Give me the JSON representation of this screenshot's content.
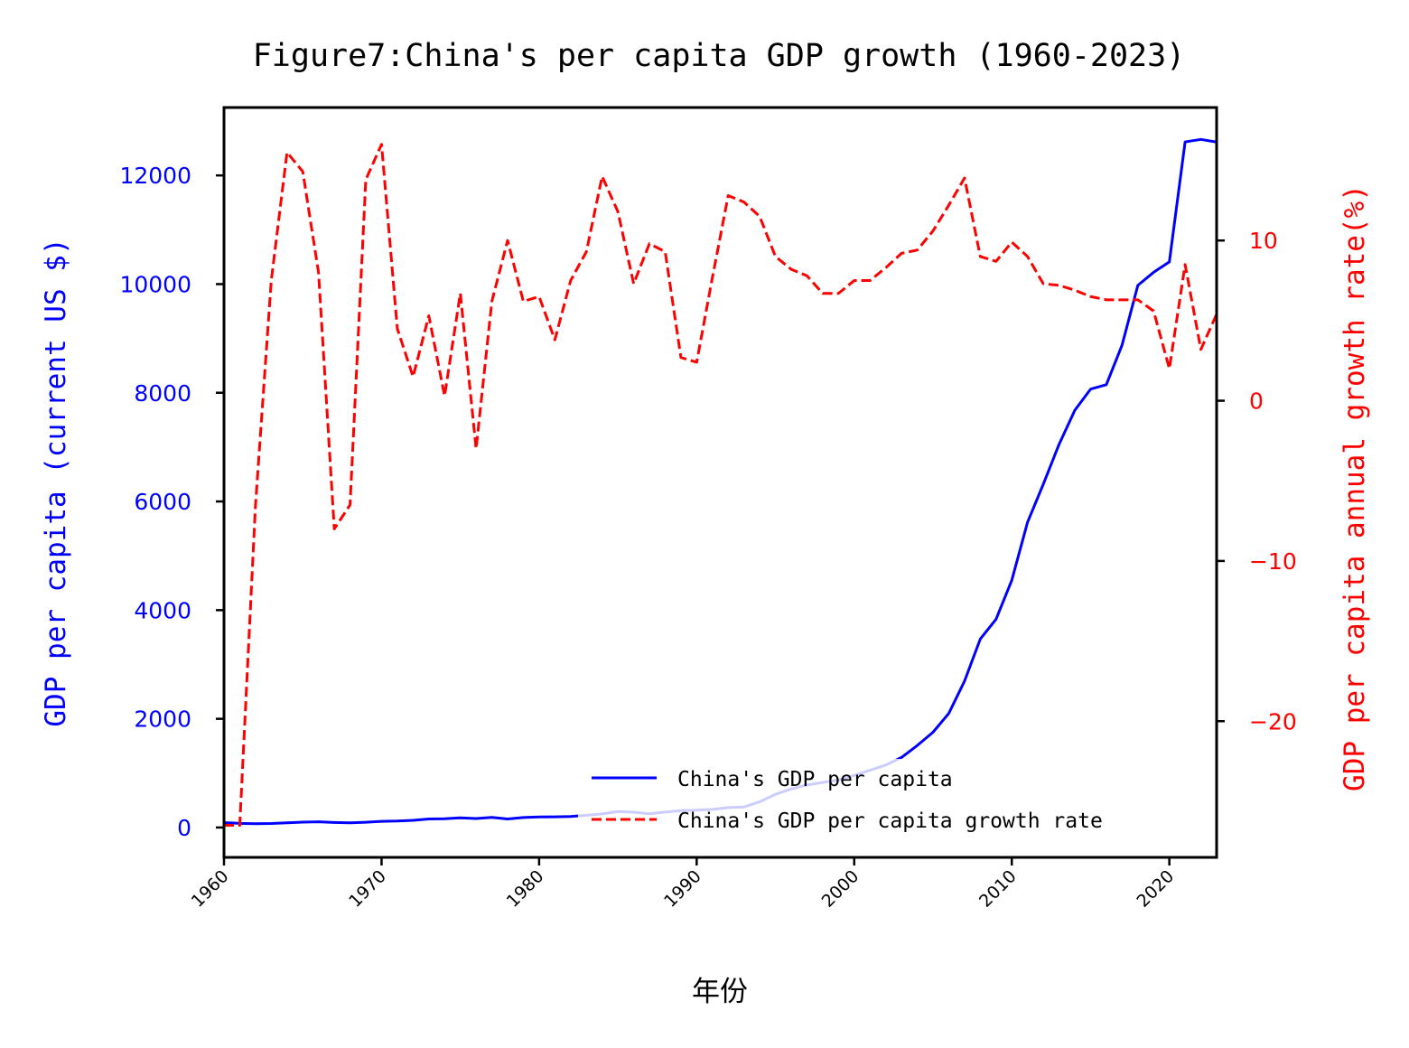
{
  "chart_data": {
    "type": "line",
    "title": "Figure7:China's per capita GDP growth (1960-2023)",
    "xlabel": "年份",
    "ylabel_left": "GDP per capita (current US $)",
    "ylabel_right": "GDP per capita annual growth rate(%)",
    "xlim": [
      1960,
      2023
    ],
    "ylim_left": [
      -550,
      13250
    ],
    "ylim_right": [
      -28.5,
      18.3
    ],
    "x_ticks": [
      "1960",
      "1970",
      "1980",
      "1990",
      "2000",
      "2010",
      "2020"
    ],
    "y_left_ticks": [
      "0",
      "2000",
      "4000",
      "6000",
      "8000",
      "10000",
      "12000"
    ],
    "y_right_ticks": [
      "−20",
      "−10",
      "0",
      "10"
    ],
    "grid": false,
    "legend_position": "lower-right",
    "legend": [
      "China's GDP per capita",
      "China's GDP per capita growth rate"
    ],
    "x": [
      1960,
      1961,
      1962,
      1963,
      1964,
      1965,
      1966,
      1967,
      1968,
      1969,
      1970,
      1971,
      1972,
      1973,
      1974,
      1975,
      1976,
      1977,
      1978,
      1979,
      1980,
      1981,
      1982,
      1983,
      1984,
      1985,
      1986,
      1987,
      1988,
      1989,
      1990,
      1991,
      1992,
      1993,
      1994,
      1995,
      1996,
      1997,
      1998,
      1999,
      2000,
      2001,
      2002,
      2003,
      2004,
      2005,
      2006,
      2007,
      2008,
      2009,
      2010,
      2011,
      2012,
      2013,
      2014,
      2015,
      2016,
      2017,
      2018,
      2019,
      2020,
      2021,
      2022,
      2023
    ],
    "series": [
      {
        "name": "China's GDP per capita",
        "axis": "left",
        "color": "#0000ff",
        "style": "solid",
        "values": [
          90,
          76,
          70,
          74,
          85,
          98,
          104,
          92,
          86,
          96,
          113,
          119,
          132,
          157,
          160,
          178,
          165,
          185,
          156,
          183,
          195,
          197,
          203,
          225,
          250,
          294,
          281,
          252,
          284,
          311,
          318,
          333,
          366,
          377,
          473,
          610,
          709,
          782,
          829,
          873,
          959,
          1053,
          1149,
          1289,
          1509,
          1753,
          2099,
          2694,
          3468,
          3832,
          4550,
          5618,
          6317,
          7051,
          7678,
          8067,
          8148,
          8879,
          9977,
          10217,
          10409,
          12617,
          12663,
          12614
        ]
      },
      {
        "name": "China's GDP per capita growth rate",
        "axis": "right",
        "color": "#ff0000",
        "style": "dashed",
        "values": [
          -26.5,
          -26.5,
          -6.5,
          7.5,
          15.5,
          14.3,
          8.0,
          -8.0,
          -6.5,
          13.8,
          16.0,
          4.5,
          1.5,
          5.3,
          0.3,
          6.7,
          -3.0,
          6.2,
          10.0,
          6.2,
          6.5,
          3.8,
          7.5,
          9.3,
          14.0,
          11.8,
          7.3,
          9.8,
          9.3,
          2.7,
          2.4,
          7.7,
          12.8,
          12.4,
          11.5,
          9.0,
          8.2,
          7.8,
          6.7,
          6.7,
          7.5,
          7.5,
          8.3,
          9.2,
          9.4,
          10.6,
          12.2,
          13.9,
          9.0,
          8.7,
          9.9,
          9.0,
          7.3,
          7.2,
          6.9,
          6.5,
          6.3,
          6.3,
          6.3,
          5.6,
          2.0,
          8.5,
          3.2,
          5.4
        ]
      }
    ]
  }
}
